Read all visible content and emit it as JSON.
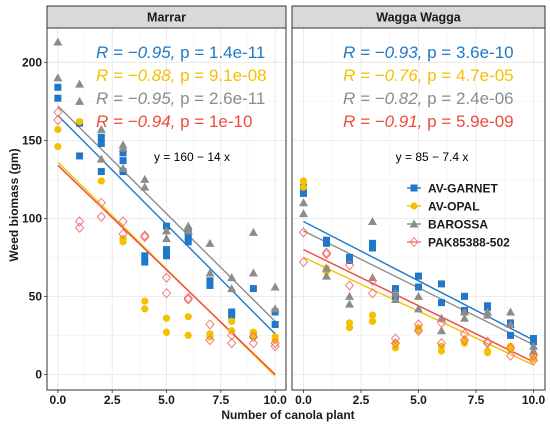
{
  "chart_data": {
    "type": "scatter",
    "xlabel": "Number of canola plant",
    "ylabel": "Weed biomass (gm)",
    "xlim": [
      -0.5,
      10.5
    ],
    "ylim": [
      -10,
      222
    ],
    "x_ticks": [
      "0.0",
      "2.5",
      "5.0",
      "7.5",
      "10.0"
    ],
    "x_tick_values": [
      0,
      2.5,
      5,
      7.5,
      10
    ],
    "y_ticks": [
      "0",
      "50",
      "100",
      "150",
      "200"
    ],
    "y_tick_values": [
      0,
      50,
      100,
      150,
      200
    ],
    "grid": true,
    "legend_position": "right, inside Wagga Wagga panel",
    "legend": [
      {
        "name": "AV-GARNET",
        "color": "#1f78c8",
        "marker": "square"
      },
      {
        "name": "AV-OPAL",
        "color": "#f5c000",
        "marker": "circle"
      },
      {
        "name": "BAROSSA",
        "color": "#8c8c8c",
        "marker": "triangle"
      },
      {
        "name": "PAK85388-502",
        "color": "#f07070",
        "marker": "open-diamond"
      }
    ],
    "panels": [
      {
        "title": "Marrar",
        "equation": "y = 160 − 14 x",
        "stats": [
          {
            "R": "R = −0.95, ",
            "p": "p = 1.4e-11",
            "color": "#1f78c8"
          },
          {
            "R": "R = −0.88, ",
            "p": "p = 9.1e-08",
            "color": "#f5c000"
          },
          {
            "R": "R = −0.95, ",
            "p": "p = 2.6e-11",
            "color": "#8c8c8c"
          },
          {
            "R": "R = −0.94, ",
            "p": "p = 1e-10",
            "color": "#ee4b3e"
          }
        ],
        "fit_lines": [
          {
            "series": "AV-GARNET",
            "color": "#1f78c8",
            "x": [
              0,
              10
            ],
            "y": [
              166,
              26
            ]
          },
          {
            "series": "AV-OPAL",
            "color": "#f5c000",
            "x": [
              0,
              10
            ],
            "y": [
              136,
              -1
            ]
          },
          {
            "series": "BAROSSA",
            "color": "#8c8c8c",
            "x": [
              0,
              10
            ],
            "y": [
              172,
              34
            ]
          },
          {
            "series": "PAK85388-502",
            "color": "#ee4b3e",
            "x": [
              0,
              10
            ],
            "y": [
              134,
              0
            ]
          }
        ],
        "series": [
          {
            "name": "AV-GARNET",
            "points": [
              [
                0,
                184
              ],
              [
                0,
                177
              ],
              [
                1,
                161
              ],
              [
                1,
                140
              ],
              [
                2,
                152
              ],
              [
                2,
                148
              ],
              [
                2,
                130
              ],
              [
                3,
                142
              ],
              [
                3,
                137
              ],
              [
                3,
                130
              ],
              [
                4,
                76
              ],
              [
                4,
                72
              ],
              [
                5,
                95
              ],
              [
                5,
                80
              ],
              [
                5,
                76
              ],
              [
                6,
                92
              ],
              [
                6,
                88
              ],
              [
                6,
                85
              ],
              [
                7,
                60
              ],
              [
                7,
                57
              ],
              [
                8,
                40
              ],
              [
                8,
                38
              ],
              [
                9,
                55
              ],
              [
                9,
                25
              ],
              [
                10,
                40
              ],
              [
                10,
                32
              ]
            ]
          },
          {
            "series_note": "",
            "name": "AV-OPAL",
            "points": [
              [
                0,
                157
              ],
              [
                0,
                146
              ],
              [
                1,
                162
              ],
              [
                2,
                124
              ],
              [
                3,
                87
              ],
              [
                3,
                85
              ],
              [
                4,
                47
              ],
              [
                4,
                42
              ],
              [
                5,
                36
              ],
              [
                5,
                27
              ],
              [
                6,
                37
              ],
              [
                6,
                25
              ],
              [
                7,
                26
              ],
              [
                7,
                24
              ],
              [
                8,
                34
              ],
              [
                8,
                28
              ],
              [
                9,
                27
              ],
              [
                9,
                25
              ],
              [
                10,
                24
              ],
              [
                10,
                22
              ]
            ]
          },
          {
            "name": "BAROSSA",
            "points": [
              [
                0,
                213
              ],
              [
                0,
                190
              ],
              [
                1,
                186
              ],
              [
                1,
                175
              ],
              [
                2,
                157
              ],
              [
                2,
                138
              ],
              [
                3,
                147
              ],
              [
                3,
                145
              ],
              [
                3,
                132
              ],
              [
                4,
                125
              ],
              [
                4,
                120
              ],
              [
                5,
                92
              ],
              [
                5,
                87
              ],
              [
                6,
                95
              ],
              [
                6,
                92
              ],
              [
                7,
                84
              ],
              [
                7,
                65
              ],
              [
                8,
                62
              ],
              [
                8,
                55
              ],
              [
                9,
                91
              ],
              [
                9,
                65
              ],
              [
                10,
                56
              ],
              [
                10,
                42
              ]
            ]
          },
          {
            "name": "PAK85388-502",
            "points": [
              [
                0,
                168
              ],
              [
                0,
                163
              ],
              [
                1,
                98
              ],
              [
                1,
                94
              ],
              [
                2,
                110
              ],
              [
                2,
                101
              ],
              [
                3,
                98
              ],
              [
                3,
                90
              ],
              [
                4,
                89
              ],
              [
                4,
                88
              ],
              [
                5,
                62
              ],
              [
                5,
                52
              ],
              [
                6,
                49
              ],
              [
                6,
                48
              ],
              [
                7,
                32
              ],
              [
                7,
                22
              ],
              [
                8,
                25
              ],
              [
                8,
                20
              ],
              [
                9,
                24
              ],
              [
                9,
                20
              ],
              [
                10,
                20
              ],
              [
                10,
                18
              ]
            ]
          }
        ]
      },
      {
        "title": "Wagga Wagga",
        "equation": "y = 85 − 7.4 x",
        "stats": [
          {
            "R": "R = −0.93, ",
            "p": "p = 3.6e-10",
            "color": "#1f78c8"
          },
          {
            "R": "R = −0.76, ",
            "p": "p = 4.7e-05",
            "color": "#f5c000"
          },
          {
            "R": "R = −0.82, ",
            "p": "p = 2.4e-06",
            "color": "#8c8c8c"
          },
          {
            "R": "R = −0.91, ",
            "p": "p = 5.9e-09",
            "color": "#ee4b3e"
          }
        ],
        "fit_lines": [
          {
            "series": "AV-GARNET",
            "color": "#1f78c8",
            "x": [
              0,
              10
            ],
            "y": [
              98,
              22
            ]
          },
          {
            "series": "AV-OPAL",
            "color": "#f5c000",
            "x": [
              0,
              10
            ],
            "y": [
              75,
              6
            ]
          },
          {
            "series": "BAROSSA",
            "color": "#8c8c8c",
            "x": [
              0,
              10
            ],
            "y": [
              92,
              19
            ]
          },
          {
            "series": "PAK85388-502",
            "color": "#ee4b3e",
            "x": [
              0,
              10
            ],
            "y": [
              80,
              8
            ]
          }
        ],
        "series": [
          {
            "name": "AV-GARNET",
            "points": [
              [
                0,
                120
              ],
              [
                0,
                116
              ],
              [
                1,
                86
              ],
              [
                1,
                84
              ],
              [
                2,
                75
              ],
              [
                2,
                73
              ],
              [
                3,
                84
              ],
              [
                3,
                81
              ],
              [
                4,
                55
              ],
              [
                4,
                50
              ],
              [
                5,
                63
              ],
              [
                5,
                56
              ],
              [
                6,
                58
              ],
              [
                6,
                46
              ],
              [
                7,
                50
              ],
              [
                7,
                41
              ],
              [
                8,
                44
              ],
              [
                8,
                43
              ],
              [
                9,
                33
              ],
              [
                9,
                25
              ],
              [
                10,
                23
              ],
              [
                10,
                21
              ]
            ]
          },
          {
            "name": "AV-OPAL",
            "points": [
              [
                0,
                124
              ],
              [
                0,
                120
              ],
              [
                1,
                68
              ],
              [
                1,
                66
              ],
              [
                2,
                33
              ],
              [
                2,
                30
              ],
              [
                3,
                38
              ],
              [
                3,
                34
              ],
              [
                4,
                20
              ],
              [
                4,
                17
              ],
              [
                5,
                30
              ],
              [
                5,
                28
              ],
              [
                6,
                18
              ],
              [
                6,
                15
              ],
              [
                7,
                22
              ],
              [
                7,
                20
              ],
              [
                8,
                15
              ],
              [
                8,
                14
              ],
              [
                9,
                18
              ],
              [
                9,
                16
              ],
              [
                10,
                12
              ],
              [
                10,
                10
              ]
            ]
          },
          {
            "name": "BAROSSA",
            "points": [
              [
                0,
                110
              ],
              [
                0,
                103
              ],
              [
                1,
                68
              ],
              [
                1,
                63
              ],
              [
                2,
                50
              ],
              [
                2,
                45
              ],
              [
                3,
                98
              ],
              [
                3,
                62
              ],
              [
                4,
                52
              ],
              [
                4,
                48
              ],
              [
                5,
                50
              ],
              [
                5,
                42
              ],
              [
                6,
                36
              ],
              [
                6,
                28
              ],
              [
                7,
                40
              ],
              [
                7,
                36
              ],
              [
                8,
                40
              ],
              [
                8,
                38
              ],
              [
                9,
                40
              ],
              [
                9,
                32
              ],
              [
                10,
                18
              ],
              [
                10,
                15
              ]
            ]
          },
          {
            "name": "PAK85388-502",
            "points": [
              [
                0,
                91
              ],
              [
                0,
                72
              ],
              [
                1,
                78
              ],
              [
                1,
                77
              ],
              [
                2,
                70
              ],
              [
                2,
                57
              ],
              [
                3,
                60
              ],
              [
                3,
                52
              ],
              [
                4,
                23
              ],
              [
                4,
                20
              ],
              [
                5,
                32
              ],
              [
                5,
                28
              ],
              [
                6,
                33
              ],
              [
                6,
                20
              ],
              [
                7,
                26
              ],
              [
                7,
                22
              ],
              [
                8,
                21
              ],
              [
                8,
                20
              ],
              [
                9,
                17
              ],
              [
                9,
                12
              ],
              [
                10,
                12
              ],
              [
                10,
                9
              ]
            ]
          }
        ]
      }
    ]
  }
}
